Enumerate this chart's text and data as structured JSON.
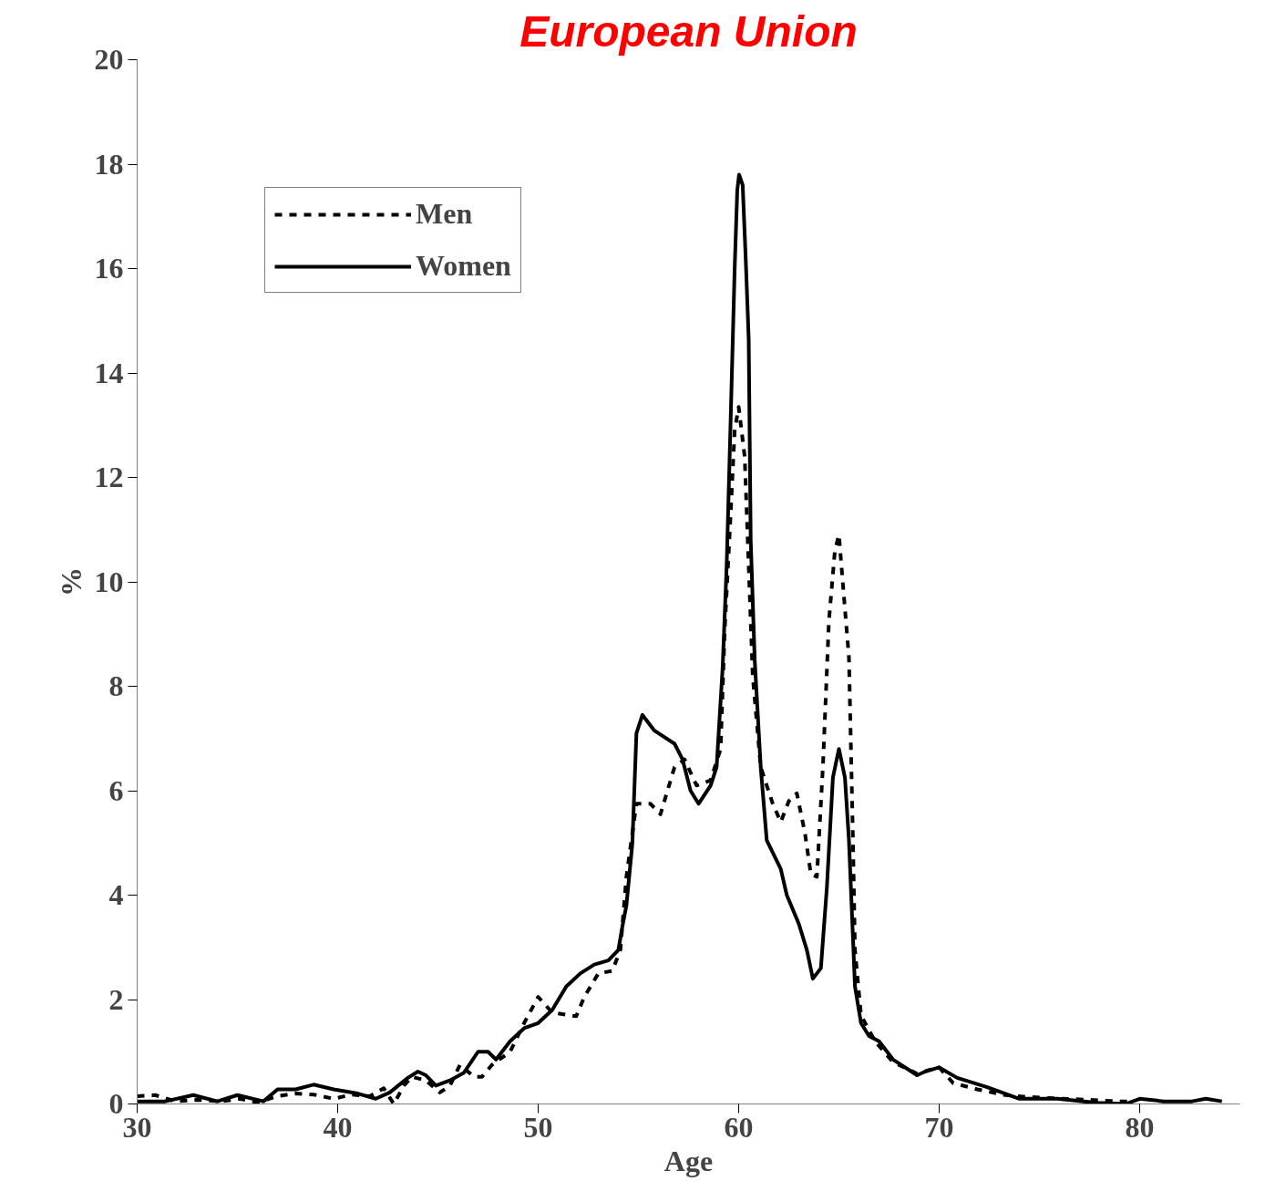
{
  "chart_data": {
    "type": "line",
    "title": "European Union",
    "xlabel": "Age",
    "ylabel": "%",
    "xlim": [
      30,
      85
    ],
    "ylim": [
      0,
      20
    ],
    "xticks": [
      30,
      40,
      50,
      60,
      70,
      80
    ],
    "yticks": [
      0,
      2,
      4,
      6,
      8,
      10,
      12,
      14,
      16,
      18,
      20
    ],
    "grid": false,
    "legend": "top left",
    "marker": "none",
    "series": [
      {
        "name": "Men",
        "color": "#000000",
        "line_style": "dashed",
        "x": [
          30,
          30.9,
          31.9,
          33,
          34.2,
          35.1,
          36,
          37,
          37.9,
          38.8,
          39.8,
          40.7,
          41.6,
          42.3,
          42.8,
          43.3,
          43.7,
          44.4,
          45.1,
          45.6,
          46.1,
          46.8,
          47.2,
          47.7,
          48.6,
          49.3,
          50,
          50.7,
          51.9,
          52.3,
          53,
          53.7,
          54.1,
          54.4,
          54.9,
          55.6,
          56.1,
          56.8,
          57.3,
          57.9,
          58.6,
          59.1,
          59.3,
          59.6,
          59.8,
          60,
          60.3,
          60.5,
          60.7,
          61.1,
          61.7,
          62.1,
          62.5,
          62.9,
          63.3,
          63.6,
          63.9,
          64.2,
          64.5,
          64.8,
          65,
          65.2,
          65.5,
          65.7,
          65.8,
          66.1,
          66.8,
          67.7,
          68.9,
          69.6,
          70,
          70.7,
          71.9,
          73.3,
          74.2,
          76.1,
          77.5,
          78.9,
          79.6
        ],
        "values": [
          0.15,
          0.17,
          0.05,
          0.08,
          0.05,
          0.1,
          0.03,
          0.15,
          0.2,
          0.18,
          0.1,
          0.18,
          0.15,
          0.3,
          0,
          0.35,
          0.52,
          0.45,
          0.22,
          0.35,
          0.75,
          0.52,
          0.52,
          0.75,
          1.0,
          1.55,
          2.05,
          1.75,
          1.68,
          2.05,
          2.5,
          2.55,
          2.95,
          4.35,
          5.75,
          5.75,
          5.55,
          6.45,
          6.6,
          6.1,
          6.2,
          6.8,
          9.05,
          11.3,
          12.9,
          13.35,
          12.4,
          10.3,
          8.2,
          6.45,
          5.75,
          5.4,
          5.8,
          5.95,
          5.2,
          4.4,
          4.35,
          6.45,
          9.25,
          10.6,
          10.9,
          9.95,
          8.55,
          5.05,
          2.95,
          1.7,
          1.2,
          0.8,
          0.58,
          0.66,
          0.7,
          0.4,
          0.28,
          0.17,
          0.14,
          0.1,
          0.08,
          0.05,
          0.05
        ]
      },
      {
        "name": "Women",
        "color": "#000000",
        "line_style": "solid",
        "x": [
          30,
          31.4,
          32.8,
          34,
          35,
          36.3,
          37,
          37.9,
          38.8,
          39.8,
          41,
          41.9,
          42.6,
          43.5,
          44,
          44.4,
          44.9,
          45.6,
          46.3,
          47,
          47.5,
          47.9,
          48.6,
          49.3,
          50,
          50.7,
          51.4,
          52.1,
          52.8,
          53.5,
          54,
          54.2,
          54.4,
          54.7,
          54.9,
          55.2,
          55.8,
          56.8,
          57.2,
          57.6,
          58,
          58.6,
          58.9,
          59.2,
          59.4,
          59.6,
          59.8,
          59.93,
          60.02,
          60.2,
          60.35,
          60.5,
          60.6,
          60.8,
          61.1,
          61.4,
          62.1,
          62.4,
          63,
          63.4,
          63.7,
          64.1,
          64.4,
          64.7,
          65,
          65.3,
          65.5,
          65.8,
          66.1,
          66.5,
          67,
          67.7,
          68.9,
          69.3,
          70,
          70.9,
          72.4,
          74,
          75.9,
          77.9,
          79.3,
          80,
          81.2,
          82.6,
          83.3,
          84.1
        ],
        "values": [
          0.05,
          0.05,
          0.17,
          0.05,
          0.17,
          0.05,
          0.28,
          0.28,
          0.37,
          0.28,
          0.2,
          0.1,
          0.22,
          0.5,
          0.62,
          0.55,
          0.35,
          0.45,
          0.6,
          1.0,
          1.0,
          0.85,
          1.2,
          1.45,
          1.55,
          1.8,
          2.25,
          2.5,
          2.67,
          2.75,
          2.95,
          3.4,
          3.8,
          5.0,
          7.1,
          7.45,
          7.15,
          6.9,
          6.6,
          6.0,
          5.75,
          6.1,
          6.45,
          8.35,
          10.3,
          13.1,
          16.0,
          17.5,
          17.8,
          17.6,
          16.2,
          14.65,
          10.8,
          8.5,
          6.45,
          5.05,
          4.5,
          4.0,
          3.45,
          2.95,
          2.4,
          2.6,
          4.15,
          6.25,
          6.8,
          6.25,
          5.05,
          2.25,
          1.55,
          1.3,
          1.2,
          0.85,
          0.55,
          0.62,
          0.7,
          0.5,
          0.32,
          0.1,
          0.1,
          0.02,
          0,
          0.1,
          0.05,
          0.05,
          0.1,
          0.05
        ]
      }
    ]
  }
}
